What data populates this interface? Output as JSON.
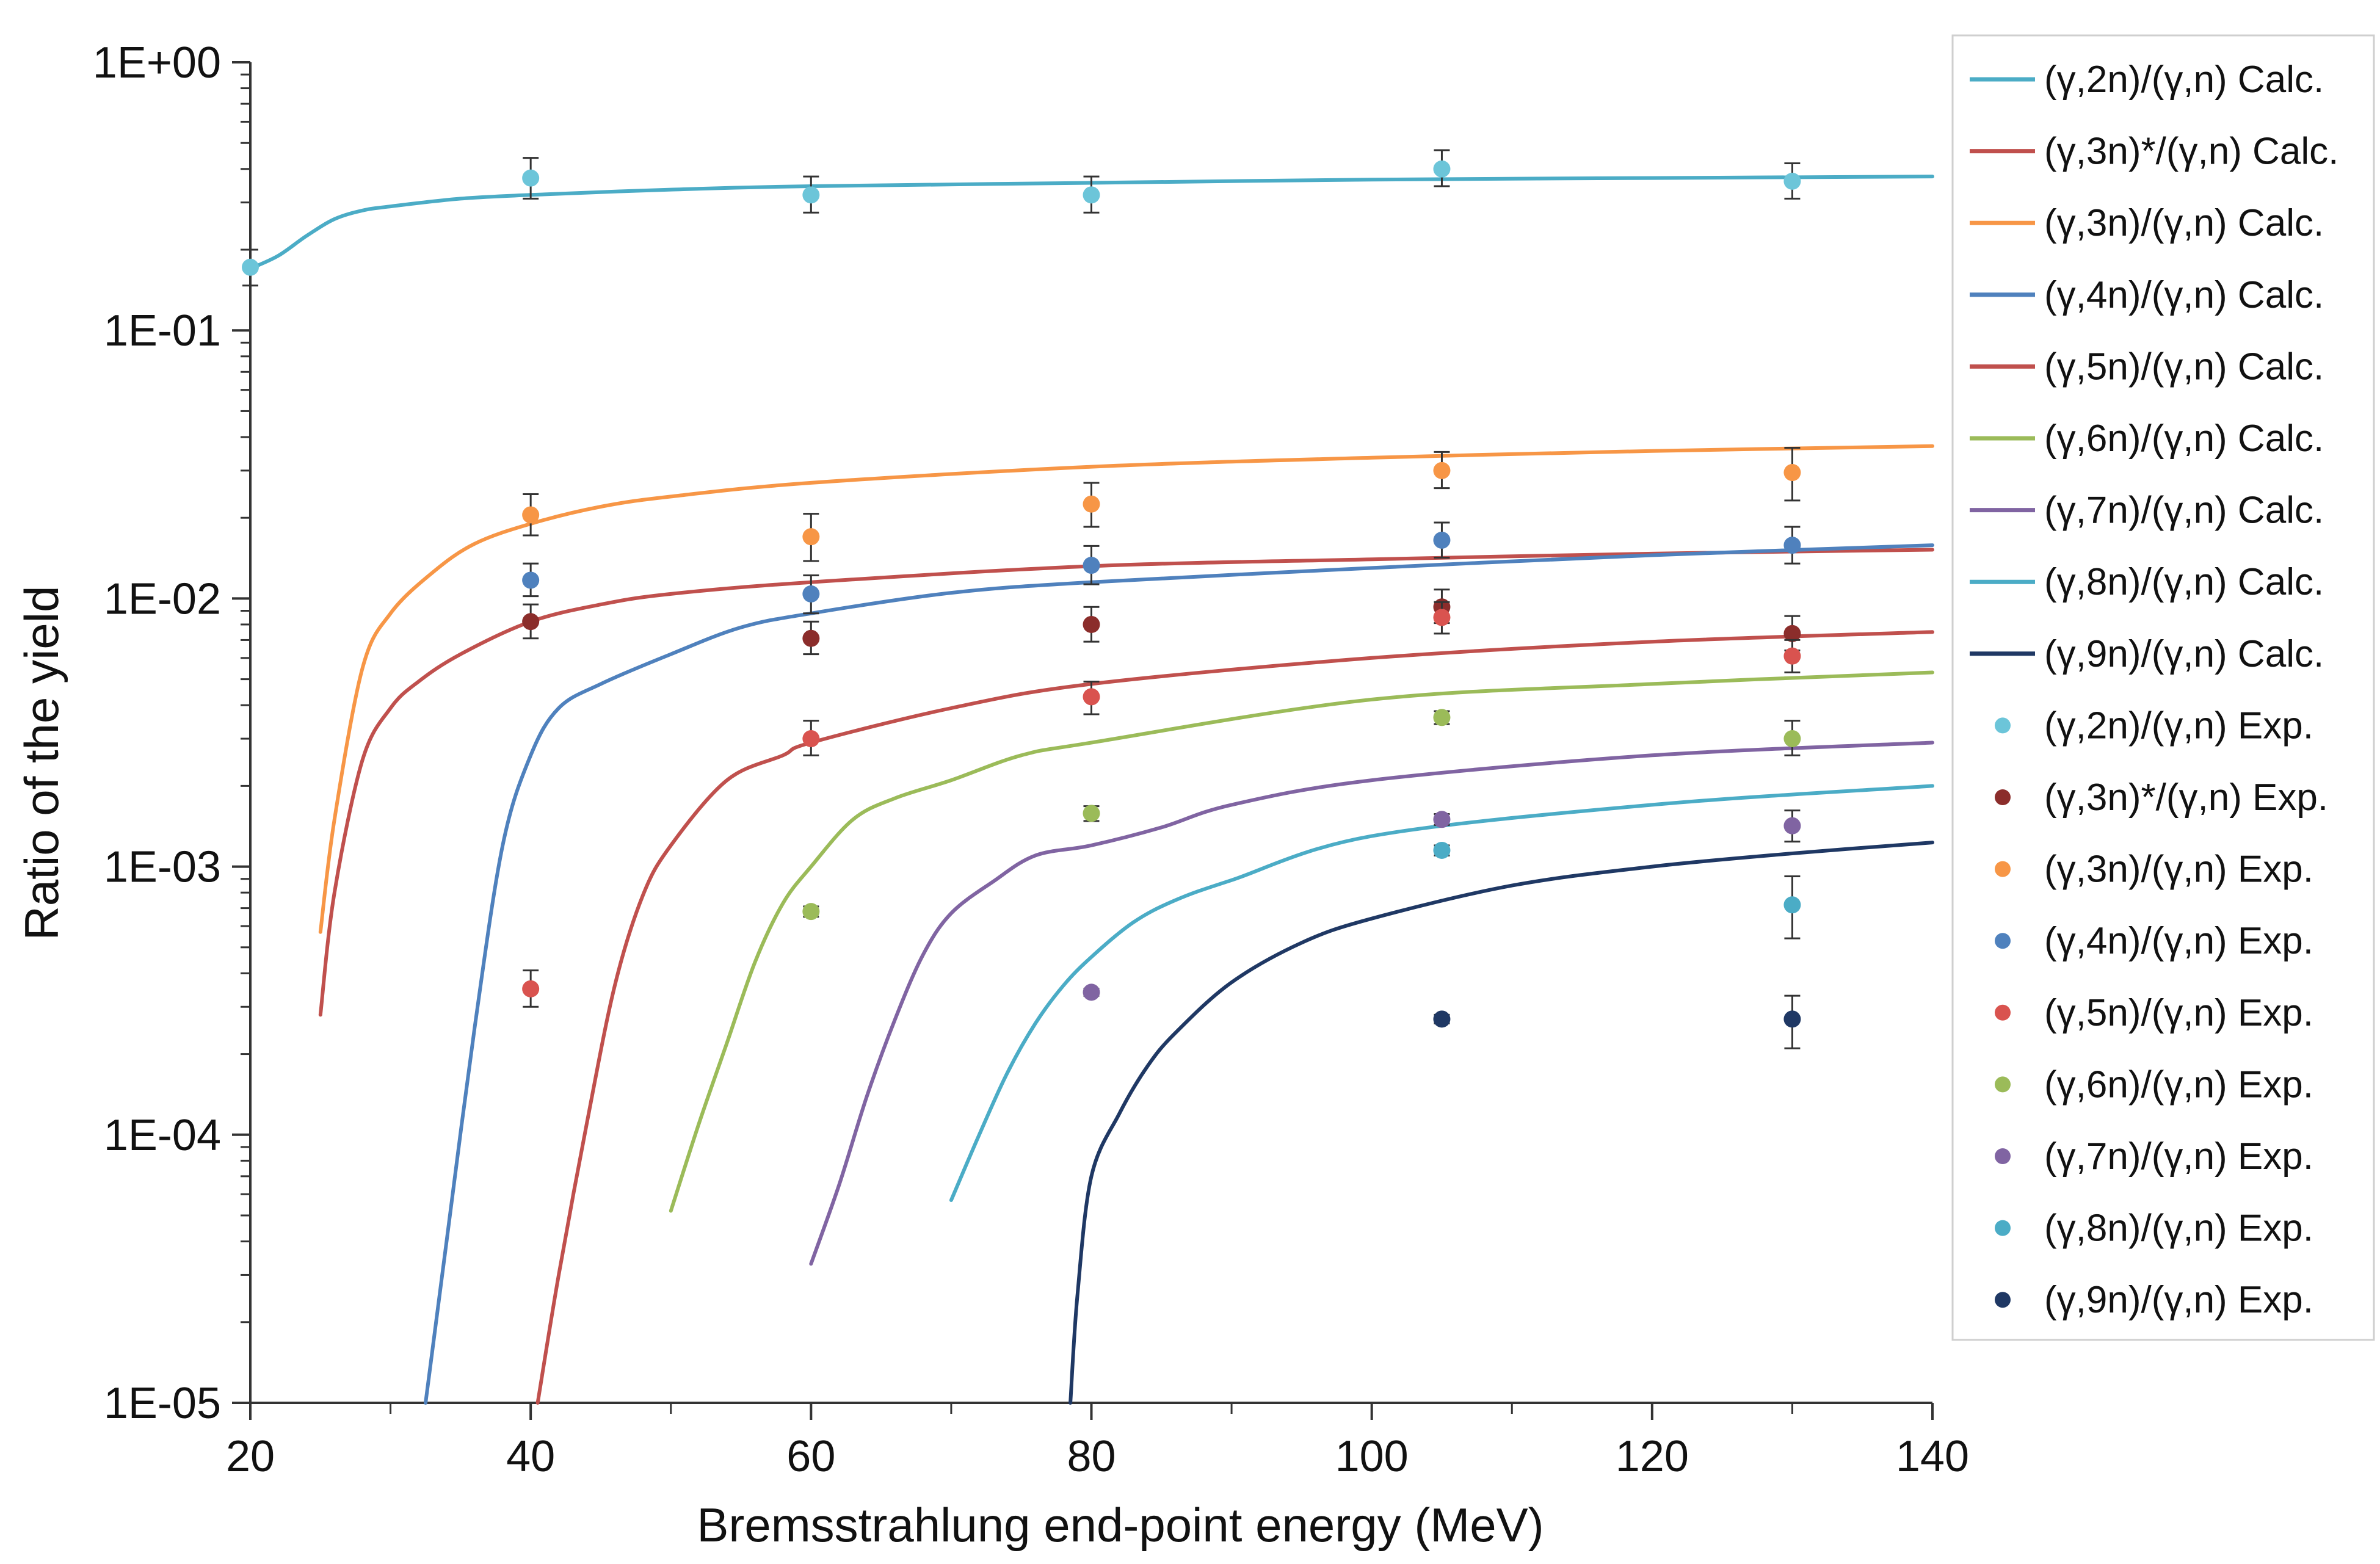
{
  "chart_data": {
    "type": "line",
    "title": "",
    "xlabel": "Bremsstrahlung end-point energy (MeV)",
    "ylabel": "Ratio of the yield",
    "xlim": [
      20,
      140
    ],
    "ylim": [
      1e-05,
      1
    ],
    "y_scale": "log",
    "grid": false,
    "legend_position": "right",
    "x_ticks": [
      20,
      40,
      60,
      80,
      100,
      120,
      140
    ],
    "x_tick_labels": [
      "20",
      "40",
      "60",
      "80",
      "100",
      "120",
      "140"
    ],
    "y_ticks": [
      1,
      0.1,
      0.01,
      0.001,
      0.0001,
      1e-05
    ],
    "y_tick_labels": [
      "1E+00",
      "1E-01",
      "1E-02",
      "1E-03",
      "1E-04",
      "1E-05"
    ],
    "series": [
      {
        "name": "(γ,2n)/(γ,n) Calc.",
        "kind": "line",
        "color": "#4bacc6",
        "x": [
          20,
          22,
          24,
          26,
          28,
          30,
          35,
          40,
          50,
          60,
          80,
          100,
          120,
          140
        ],
        "y": [
          0.17,
          0.19,
          0.225,
          0.26,
          0.28,
          0.29,
          0.31,
          0.32,
          0.335,
          0.345,
          0.355,
          0.365,
          0.37,
          0.375
        ]
      },
      {
        "name": "(γ,3n)*/(γ,n) Calc.",
        "kind": "line",
        "color": "#c0504d",
        "x": [
          25,
          26,
          28,
          30,
          32,
          35,
          40,
          45,
          50,
          60,
          80,
          100,
          120,
          140
        ],
        "y": [
          0.00028,
          0.0008,
          0.0025,
          0.0039,
          0.0049,
          0.0062,
          0.0082,
          0.0095,
          0.0104,
          0.0115,
          0.0132,
          0.014,
          0.0147,
          0.0152
        ]
      },
      {
        "name": "(γ,3n)/(γ,n) Calc.",
        "kind": "line",
        "color": "#f79646",
        "x": [
          25,
          26,
          28,
          30,
          33,
          36,
          40,
          45,
          50,
          60,
          80,
          100,
          120,
          140
        ],
        "y": [
          0.00057,
          0.0015,
          0.0055,
          0.0088,
          0.0125,
          0.016,
          0.019,
          0.022,
          0.024,
          0.027,
          0.031,
          0.0335,
          0.0355,
          0.037
        ]
      },
      {
        "name": "(γ,4n)/(γ,n) Calc.",
        "kind": "line",
        "color": "#4f81bd",
        "x": [
          32.5,
          34,
          36,
          38,
          40,
          42,
          45,
          50,
          55,
          60,
          70,
          80,
          100,
          120,
          140
        ],
        "y": [
          1e-05,
          4e-05,
          0.00025,
          0.0012,
          0.0026,
          0.0039,
          0.0048,
          0.0062,
          0.0078,
          0.0088,
          0.0105,
          0.0115,
          0.013,
          0.0145,
          0.0158
        ]
      },
      {
        "name": "(γ,5n)/(γ,n) Calc.",
        "kind": "line",
        "color": "#c0504d",
        "x": [
          40.5,
          42,
          44,
          46,
          48,
          50,
          54,
          58,
          60,
          70,
          80,
          100,
          120,
          140
        ],
        "y": [
          1e-05,
          3e-05,
          0.00011,
          0.00036,
          0.00078,
          0.0012,
          0.0021,
          0.0026,
          0.0029,
          0.0039,
          0.0048,
          0.006,
          0.0069,
          0.0075
        ]
      },
      {
        "name": "(γ,6n)/(γ,n) Calc.",
        "kind": "line",
        "color": "#9bbb59",
        "x": [
          50,
          52,
          54,
          56,
          58,
          60,
          63,
          66,
          70,
          75,
          80,
          100,
          120,
          140
        ],
        "y": [
          5.2e-05,
          0.00011,
          0.00022,
          0.00044,
          0.00073,
          0.001,
          0.0015,
          0.0018,
          0.0021,
          0.0026,
          0.0029,
          0.0042,
          0.0048,
          0.0053
        ]
      },
      {
        "name": "(γ,7n)/(γ,n) Calc.",
        "kind": "line",
        "color": "#8064a2",
        "x": [
          60,
          62,
          64,
          66,
          68,
          70,
          73,
          76,
          80,
          85,
          90,
          100,
          120,
          140
        ],
        "y": [
          3.3e-05,
          6.5e-05,
          0.00014,
          0.00027,
          0.00047,
          0.00067,
          0.00088,
          0.0011,
          0.0012,
          0.0014,
          0.0017,
          0.0021,
          0.0026,
          0.0029
        ]
      },
      {
        "name": "(γ,8n)/(γ,n) Calc.",
        "kind": "line",
        "color": "#4bacc6",
        "x": [
          70,
          72,
          74,
          76,
          78,
          80,
          83,
          86,
          90,
          100,
          120,
          140
        ],
        "y": [
          5.7e-05,
          0.0001,
          0.00017,
          0.00026,
          0.00036,
          0.00046,
          0.00062,
          0.00075,
          0.00089,
          0.0013,
          0.0017,
          0.002
        ]
      },
      {
        "name": "(γ,9n)/(γ,n) Calc.",
        "kind": "line",
        "color": "#1f3864",
        "x": [
          78.5,
          79,
          80,
          82,
          84,
          86,
          90,
          95,
          100,
          110,
          120,
          130,
          140
        ],
        "y": [
          1e-05,
          2.5e-05,
          7e-05,
          0.00012,
          0.00018,
          0.00024,
          0.00037,
          0.00052,
          0.00064,
          0.00085,
          0.001,
          0.00112,
          0.00123
        ]
      },
      {
        "name": "(γ,2n)/(γ,n) Exp.",
        "kind": "scatter",
        "color": "#6cc5d9",
        "x": [
          20,
          40,
          60,
          80,
          105,
          130
        ],
        "y": [
          0.172,
          0.37,
          0.32,
          0.32,
          0.4,
          0.36
        ],
        "err_low": [
          0.147,
          0.31,
          0.275,
          0.275,
          0.345,
          0.31
        ],
        "err_high": [
          0.2,
          0.44,
          0.375,
          0.375,
          0.47,
          0.42
        ]
      },
      {
        "name": "(γ,3n)*/(γ,n) Exp.",
        "kind": "scatter",
        "color": "#8b2d2b",
        "x": [
          40,
          60,
          80,
          105,
          130
        ],
        "y": [
          0.0082,
          0.0071,
          0.008,
          0.0093,
          0.0074
        ],
        "err_low": [
          0.0071,
          0.0062,
          0.0069,
          0.0081,
          0.0064
        ],
        "err_high": [
          0.0095,
          0.0082,
          0.0093,
          0.0108,
          0.0086
        ]
      },
      {
        "name": "(γ,3n)/(γ,n) Exp.",
        "kind": "scatter",
        "color": "#f79646",
        "x": [
          40,
          60,
          80,
          105,
          130
        ],
        "y": [
          0.0205,
          0.017,
          0.0225,
          0.03,
          0.0295
        ],
        "err_low": [
          0.0172,
          0.0138,
          0.0185,
          0.0258,
          0.0232
        ],
        "err_high": [
          0.0245,
          0.0207,
          0.027,
          0.0352,
          0.0365
        ]
      },
      {
        "name": "(γ,4n)/(γ,n) Exp.",
        "kind": "scatter",
        "color": "#4f81bd",
        "x": [
          40,
          60,
          80,
          105,
          130
        ],
        "y": [
          0.0117,
          0.0104,
          0.0133,
          0.0165,
          0.0158
        ],
        "err_low": [
          0.0102,
          0.0088,
          0.0113,
          0.0142,
          0.0135
        ],
        "err_high": [
          0.0135,
          0.0122,
          0.0157,
          0.0192,
          0.0185
        ]
      },
      {
        "name": "(γ,5n)/(γ,n) Exp.",
        "kind": "scatter",
        "color": "#d9534f",
        "x": [
          40,
          60,
          80,
          105,
          130
        ],
        "y": [
          0.00035,
          0.003,
          0.0043,
          0.0085,
          0.0061
        ],
        "err_low": [
          0.0003,
          0.0026,
          0.0037,
          0.0074,
          0.0053
        ],
        "err_high": [
          0.00041,
          0.0035,
          0.0049,
          0.0097,
          0.007
        ]
      },
      {
        "name": "(γ,6n)/(γ,n) Exp.",
        "kind": "scatter",
        "color": "#9bbb59",
        "x": [
          60,
          80,
          105,
          130
        ],
        "y": [
          0.00068,
          0.00158,
          0.0036,
          0.003
        ],
        "err_low": [
          0.00065,
          0.00148,
          0.0034,
          0.0026
        ],
        "err_high": [
          0.00071,
          0.00168,
          0.0038,
          0.0035
        ]
      },
      {
        "name": "(γ,7n)/(γ,n) Exp.",
        "kind": "scatter",
        "color": "#8064a2",
        "x": [
          80,
          105,
          130
        ],
        "y": [
          0.00034,
          0.0015,
          0.00142
        ],
        "err_low": [
          0.00033,
          0.00143,
          0.00124
        ],
        "err_high": [
          0.00035,
          0.00157,
          0.00162
        ]
      },
      {
        "name": "(γ,8n)/(γ,n) Exp.",
        "kind": "scatter",
        "color": "#4bacc6",
        "x": [
          105,
          130
        ],
        "y": [
          0.00115,
          0.00072
        ],
        "err_low": [
          0.0011,
          0.00054
        ],
        "err_high": [
          0.0012,
          0.00092
        ]
      },
      {
        "name": "(γ,9n)/(γ,n) Exp.",
        "kind": "scatter",
        "color": "#1f3864",
        "x": [
          105,
          130
        ],
        "y": [
          0.00027,
          0.00027
        ],
        "err_low": [
          0.00026,
          0.00021
        ],
        "err_high": [
          0.00028,
          0.00033
        ]
      }
    ]
  }
}
